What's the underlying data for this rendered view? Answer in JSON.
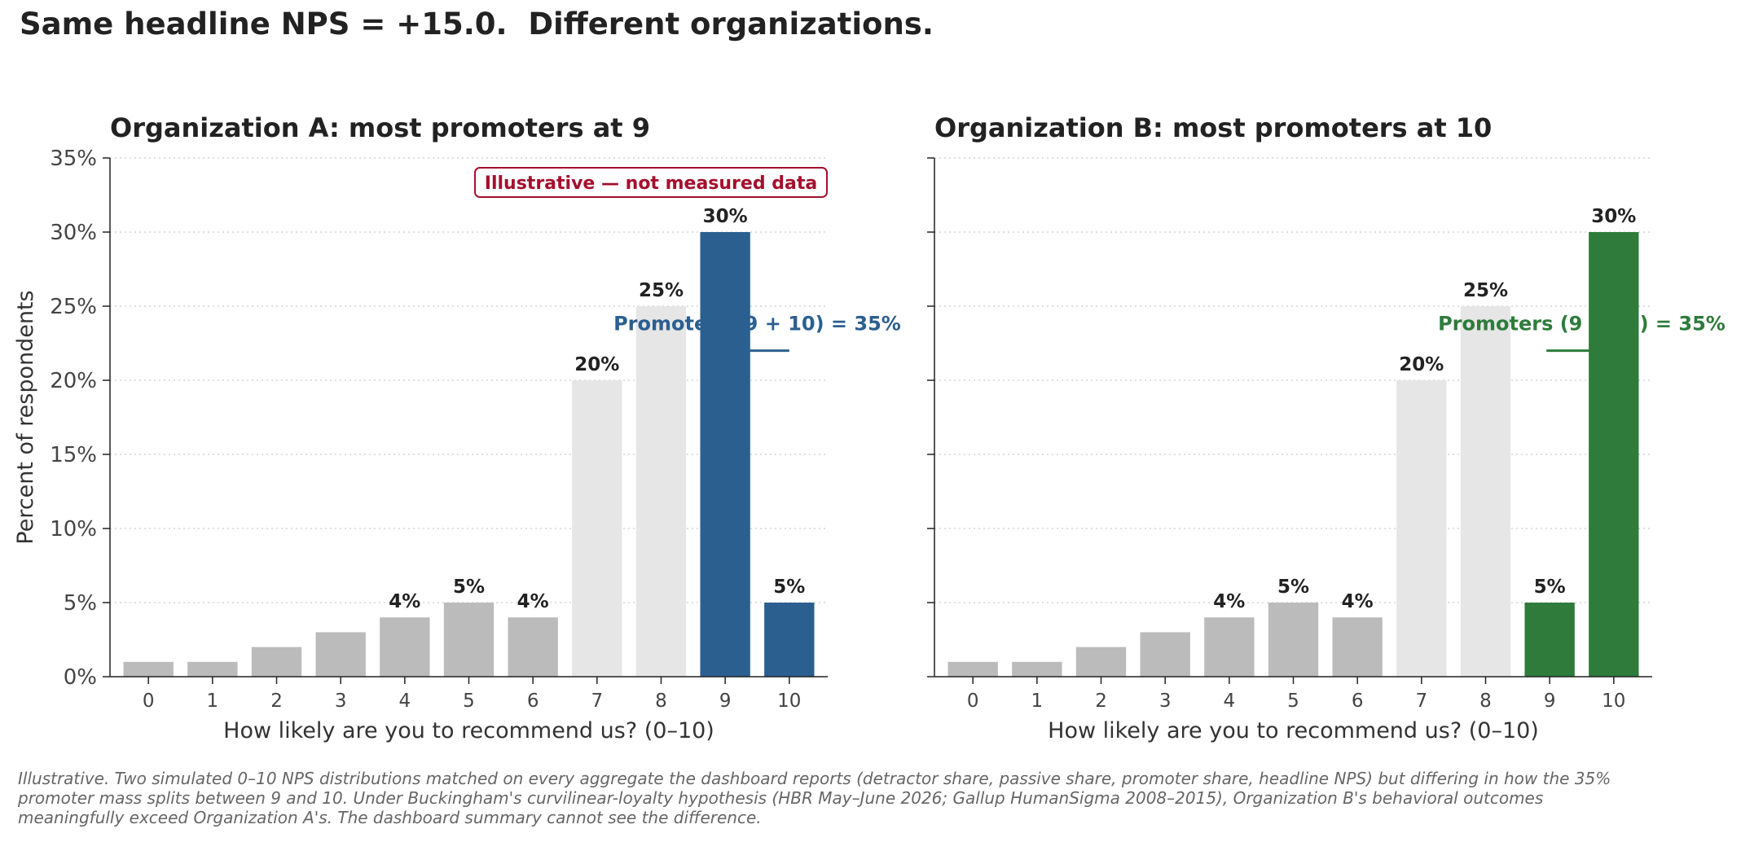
{
  "suptitle": "Same headline NPS = +15.0.  Different organizations.",
  "colors": {
    "detractor": "#bbbbbb",
    "passive": "#e6e6e6",
    "promoter_a": "#2b5f8f",
    "promoter_b": "#2e7b3c",
    "badge": "#a50f2d",
    "grid": "#cccccc",
    "axis_text": "#444444",
    "label_text": "#222222"
  },
  "illustrative_badge": "Illustrative — not measured data",
  "chart_data": [
    {
      "type": "bar",
      "title": "Organization A: most promoters at 9",
      "xlabel": "How likely are you to recommend us?  (0–10)",
      "ylabel": "Percent of respondents",
      "categories": [
        "0",
        "1",
        "2",
        "3",
        "4",
        "5",
        "6",
        "7",
        "8",
        "9",
        "10"
      ],
      "values": [
        1,
        1,
        2,
        3,
        4,
        5,
        4,
        20,
        25,
        30,
        5
      ],
      "data_labels": [
        "",
        "",
        "",
        "",
        "4%",
        "5%",
        "4%",
        "20%",
        "25%",
        "30%",
        "5%"
      ],
      "groups": [
        "detractor",
        "detractor",
        "detractor",
        "detractor",
        "detractor",
        "detractor",
        "detractor",
        "passive",
        "passive",
        "promoter",
        "promoter"
      ],
      "ylim": [
        0,
        35
      ],
      "yticks": [
        "0%",
        "5%",
        "10%",
        "15%",
        "20%",
        "25%",
        "30%",
        "35%"
      ],
      "grid": "y-dotted",
      "annotation": {
        "text": "Promoters (9 + 10) = 35%",
        "x_start": 8.95,
        "x_end": 10.0,
        "y": 22
      }
    },
    {
      "type": "bar",
      "title": "Organization B: most promoters at 10",
      "xlabel": "How likely are you to recommend us?  (0–10)",
      "ylabel": "",
      "categories": [
        "0",
        "1",
        "2",
        "3",
        "4",
        "5",
        "6",
        "7",
        "8",
        "9",
        "10"
      ],
      "values": [
        1,
        1,
        2,
        3,
        4,
        5,
        4,
        20,
        25,
        5,
        30
      ],
      "data_labels": [
        "",
        "",
        "",
        "",
        "4%",
        "5%",
        "4%",
        "20%",
        "25%",
        "5%",
        "30%"
      ],
      "groups": [
        "detractor",
        "detractor",
        "detractor",
        "detractor",
        "detractor",
        "detractor",
        "detractor",
        "passive",
        "passive",
        "promoter",
        "promoter"
      ],
      "ylim": [
        0,
        35
      ],
      "yticks": [
        "0%",
        "5%",
        "10%",
        "15%",
        "20%",
        "25%",
        "30%",
        "35%"
      ],
      "grid": "y-dotted",
      "annotation": {
        "text": "Promoters (9 + 10) = 35%",
        "x_start": 8.95,
        "x_end": 10.0,
        "y": 22
      }
    }
  ],
  "caption_lines": [
    "Illustrative. Two simulated 0–10 NPS distributions matched on every aggregate the dashboard reports (detractor share, passive share, promoter share, headline NPS) but differing in how the 35%",
    "promoter mass splits between 9 and 10. Under Buckingham's curvilinear-loyalty hypothesis (HBR May–June 2026; Gallup HumanSigma 2008–2015), Organization B's behavioral outcomes",
    "meaningfully exceed Organization A's. The dashboard summary cannot see the difference."
  ]
}
